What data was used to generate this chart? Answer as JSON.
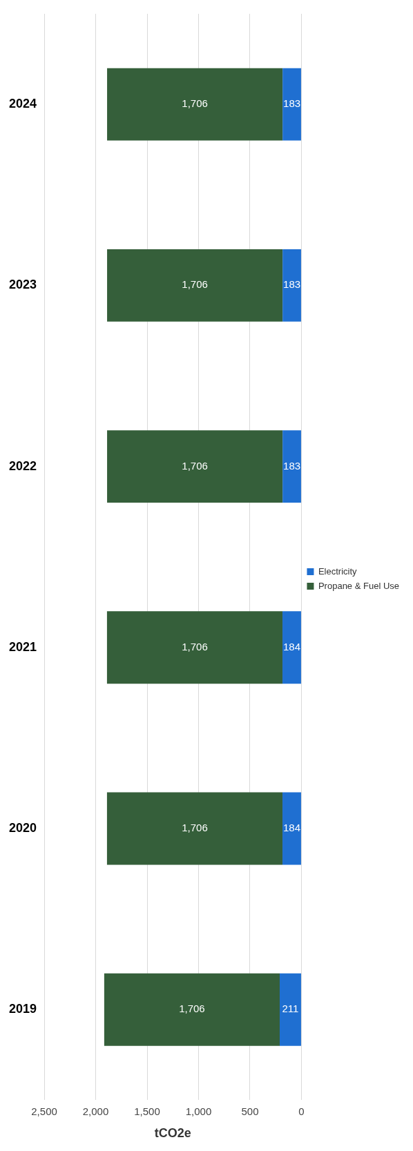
{
  "chart_data": {
    "type": "bar",
    "xlabel": "tCO2e",
    "stacked": true,
    "orientation": "horizontal",
    "categories": [
      "2024",
      "2023",
      "2022",
      "2021",
      "2020",
      "2019"
    ],
    "series": [
      {
        "name": "Electricity",
        "color": "#1f6fd1",
        "values": [
          183,
          183,
          183,
          184,
          184,
          211
        ],
        "value_labels": [
          "183",
          "183",
          "183",
          "184",
          "184",
          "211"
        ]
      },
      {
        "name": "Propane & Fuel Use",
        "color": "#355f3a",
        "values": [
          1706,
          1706,
          1706,
          1706,
          1706,
          1706
        ],
        "value_labels": [
          "1,706",
          "1,706",
          "1,706",
          "1,706",
          "1,706",
          "1,706"
        ]
      }
    ],
    "xlim": [
      2500,
      0
    ],
    "xticks": [
      {
        "value": 2500,
        "label": "2,500"
      },
      {
        "value": 2000,
        "label": "2,000"
      },
      {
        "value": 1500,
        "label": "1,500"
      },
      {
        "value": 1000,
        "label": "1,000"
      },
      {
        "value": 500,
        "label": "500"
      },
      {
        "value": 0,
        "label": "0"
      }
    ],
    "grid": "x",
    "legend": "right"
  }
}
